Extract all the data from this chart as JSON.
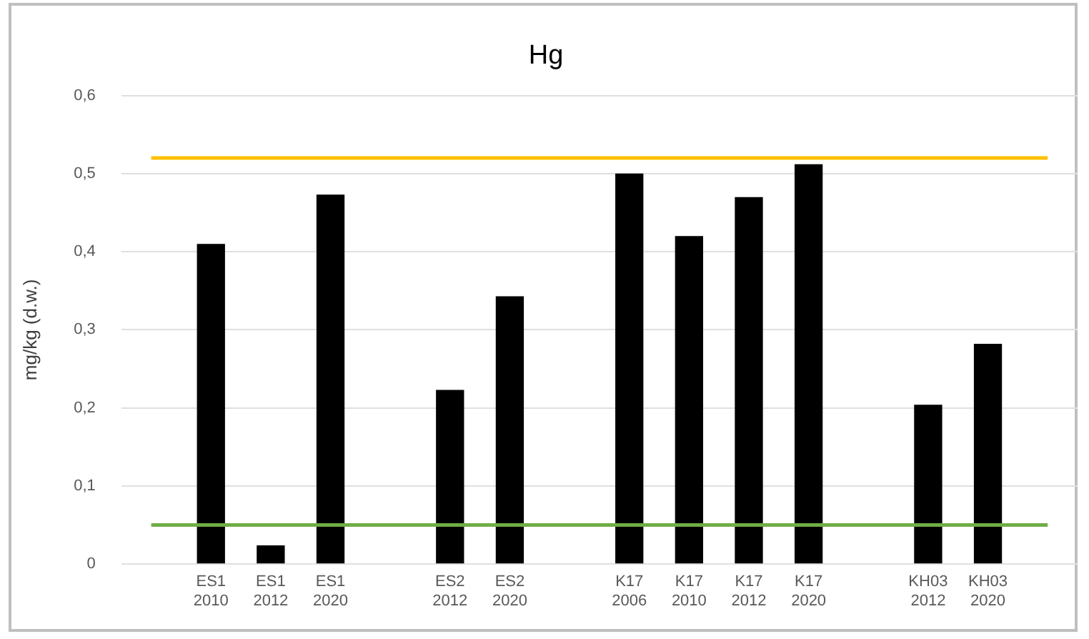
{
  "chart_data": {
    "type": "bar",
    "title": "Hg",
    "ylabel": "mg/kg (d.w.)",
    "categories": [
      null,
      "ES1 2010",
      "ES1 2012",
      "ES1 2020",
      null,
      "ES2 2012",
      "ES2 2020",
      null,
      "K17 2006",
      "K17 2010",
      "K17 2012",
      "K17 2020",
      null,
      "KH03 2012",
      "KH03 2020",
      null
    ],
    "values": [
      null,
      0.41,
      0.024,
      0.473,
      null,
      0.223,
      0.343,
      null,
      0.5,
      0.42,
      0.47,
      0.512,
      null,
      0.204,
      0.282,
      null
    ],
    "color": "#000000",
    "ylim": [
      0,
      0.6
    ],
    "yticks": [
      {
        "value": 0,
        "label": "0"
      },
      {
        "value": 0.1,
        "label": "0,1"
      },
      {
        "value": 0.2,
        "label": "0,2"
      },
      {
        "value": 0.3,
        "label": "0,3"
      },
      {
        "value": 0.4,
        "label": "0,4"
      },
      {
        "value": 0.5,
        "label": "0,5"
      },
      {
        "value": 0.6,
        "label": "0,6"
      }
    ],
    "grid": "y",
    "legend": false,
    "ref_lines": [
      {
        "axis": "y",
        "value": 0.52,
        "color": "#ffc000"
      },
      {
        "axis": "y",
        "value": 0.05,
        "color": "#70ad47"
      }
    ]
  }
}
